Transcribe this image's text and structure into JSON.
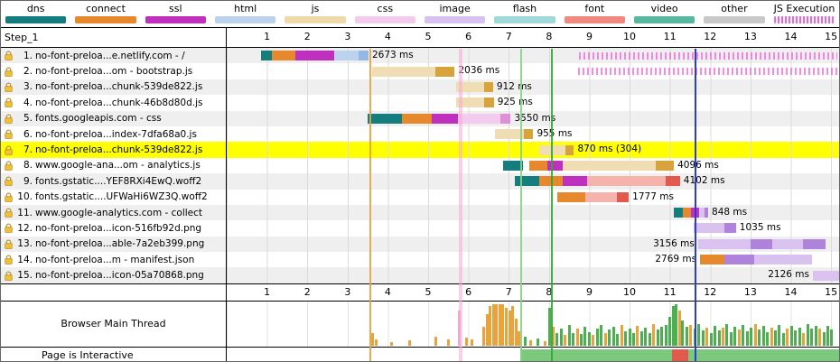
{
  "step_label": "Step_1",
  "legend": {
    "items": [
      {
        "label": "dns",
        "color": "#157D7D"
      },
      {
        "label": "connect",
        "color": "#E8882D"
      },
      {
        "label": "ssl",
        "color": "#BF30BF"
      },
      {
        "label": "html",
        "color": "#BCD3EE"
      },
      {
        "label": "js",
        "color": "#EFD9A8"
      },
      {
        "label": "css",
        "color": "#F2CBEE"
      },
      {
        "label": "image",
        "color": "#D9C2EF"
      },
      {
        "label": "flash",
        "color": "#9FD9D9"
      },
      {
        "label": "font",
        "color": "#F08A80"
      },
      {
        "label": "video",
        "color": "#57B7A0"
      },
      {
        "label": "other",
        "color": "#C9C9C9"
      },
      {
        "label": "JS Execution",
        "color": "#F066DE",
        "striped": true
      }
    ]
  },
  "timeline": {
    "ticks": [
      1,
      2,
      3,
      4,
      5,
      6,
      7,
      8,
      9,
      10,
      11,
      12,
      13,
      14,
      15
    ],
    "seconds_visible": 15.2
  },
  "colors": {
    "highlight": "#FFFF00",
    "dns": "#157D7D",
    "connect": "#E8882D",
    "ssl": "#BF30BF",
    "html_light": "#BCD3EE",
    "html_dark": "#93B8E3",
    "js_light": "#F0DDB4",
    "js_dark": "#D9A33C",
    "css_light": "#F2CBEE",
    "css_dark": "#DE8FD6",
    "font_light": "#F5B3AC",
    "font_dark": "#E25A4D",
    "image_light": "#D9C2EF",
    "image_dark": "#AF83DC",
    "other_light": "#DCD3E8",
    "other_dark": "#B9A8D1",
    "mt": {
      "o": "#E8A33D",
      "g": "#4CAF50",
      "p": "#F5A6CE"
    }
  },
  "requests": [
    {
      "num": 1,
      "url": "no-font-preloa...e.netlify.com - /",
      "label": "2673 ms",
      "label_pos": "after",
      "start": 0.85,
      "segments": [
        [
          "dns",
          0.28
        ],
        [
          "connect",
          0.58
        ],
        [
          "ssl",
          0.95
        ],
        [
          "html_light",
          0.62
        ],
        [
          "html_dark",
          0.24
        ]
      ],
      "js_exec": [
        [
          8.75,
          15.15
        ]
      ]
    },
    {
      "num": 2,
      "url": "no-font-preloa...om - bootstrap.js",
      "label": "2036 ms",
      "label_pos": "after",
      "start": 3.62,
      "segments": [
        [
          "js_light",
          1.55
        ],
        [
          "js_dark",
          0.49
        ]
      ],
      "js_exec": [
        [
          8.72,
          15.15
        ]
      ]
    },
    {
      "num": 3,
      "url": "no-font-preloa...chunk-539de822.js",
      "label": "912 ms",
      "label_pos": "after",
      "start": 5.7,
      "segments": [
        [
          "js_light",
          0.68
        ],
        [
          "js_dark",
          0.23
        ]
      ]
    },
    {
      "num": 4,
      "url": "no-font-preloa...chunk-46b8d80d.js",
      "label": "925 ms",
      "label_pos": "after",
      "start": 5.7,
      "segments": [
        [
          "js_light",
          0.7
        ],
        [
          "js_dark",
          0.23
        ]
      ]
    },
    {
      "num": 5,
      "url": "fonts.googleapis.com - css",
      "label": "3550 ms",
      "label_pos": "after",
      "start": 3.5,
      "segments": [
        [
          "dns",
          0.85
        ],
        [
          "connect",
          0.75
        ],
        [
          "ssl",
          0.65
        ],
        [
          "css_light",
          1.05
        ],
        [
          "css_dark",
          0.25
        ]
      ]
    },
    {
      "num": 6,
      "url": "no-font-preloa...index-7dfa68a0.js",
      "label": "955 ms",
      "label_pos": "after",
      "start": 6.65,
      "segments": [
        [
          "js_light",
          0.72
        ],
        [
          "js_dark",
          0.24
        ]
      ]
    },
    {
      "num": 7,
      "url": "no-font-preloa...chunk-539de822.js",
      "label": "870 ms (304)",
      "label_pos": "after",
      "start": 7.75,
      "highlight": true,
      "segments": [
        [
          "js_light",
          0.65
        ],
        [
          "js_dark",
          0.22
        ]
      ]
    },
    {
      "num": 8,
      "url": "www.google-ana...om - analytics.js",
      "label": "4096 ms",
      "label_pos": "after",
      "start": 6.85,
      "segments": [
        [
          "dns",
          0.5
        ],
        [
          "gap",
          0.15
        ],
        [
          "connect",
          0.45
        ],
        [
          "ssl",
          0.4
        ],
        [
          "js_light",
          2.3
        ],
        [
          "js_dark",
          0.45
        ]
      ]
    },
    {
      "num": 9,
      "url": "fonts.gstatic....YEF8RXi4EwQ.woff2",
      "label": "4102 ms",
      "label_pos": "after",
      "start": 7.15,
      "segments": [
        [
          "dns",
          0.6
        ],
        [
          "connect",
          0.6
        ],
        [
          "ssl",
          0.6
        ],
        [
          "font_light",
          1.95
        ],
        [
          "font_dark",
          0.35
        ]
      ]
    },
    {
      "num": 10,
      "url": "fonts.gstatic....UFWaHi6WZ3Q.woff2",
      "label": "1777 ms",
      "label_pos": "after",
      "start": 8.2,
      "segments": [
        [
          "connect",
          0.7
        ],
        [
          "font_light",
          0.78
        ],
        [
          "font_dark",
          0.3
        ]
      ]
    },
    {
      "num": 11,
      "url": "www.google-analytics.com - collect",
      "label": "848 ms",
      "label_pos": "after",
      "start": 11.1,
      "segments": [
        [
          "dns",
          0.22
        ],
        [
          "connect",
          0.2
        ],
        [
          "ssl",
          0.2
        ],
        [
          "image_light",
          0.13
        ],
        [
          "image_dark",
          0.1
        ]
      ]
    },
    {
      "num": 12,
      "url": "no-font-preloa...icon-516fb92d.png",
      "label": "1035 ms",
      "label_pos": "after",
      "start": 11.6,
      "segments": [
        [
          "image_light",
          0.75
        ],
        [
          "image_dark",
          0.29
        ]
      ]
    },
    {
      "num": 13,
      "url": "no-font-preloa...able-7a2eb399.png",
      "label": "3156 ms",
      "label_pos": "before",
      "start": 11.7,
      "segments": [
        [
          "image_light",
          1.3
        ],
        [
          "image_dark",
          0.55
        ],
        [
          "image_light",
          0.75
        ],
        [
          "image_dark",
          0.56
        ]
      ]
    },
    {
      "num": 14,
      "url": "no-font-preloa...m - manifest.json",
      "label": "2769 ms",
      "label_pos": "before",
      "start": 11.75,
      "segments": [
        [
          "connect",
          0.6
        ],
        [
          "image_dark",
          0.75
        ],
        [
          "image_light",
          1.42
        ]
      ]
    },
    {
      "num": 15,
      "url": "no-font-preloa...icon-05a70868.png",
      "label": "2126 ms",
      "label_pos": "before",
      "start": 14.55,
      "segments": [
        [
          "image_light",
          1.6
        ],
        [
          "image_dark",
          0.53
        ]
      ]
    }
  ],
  "event_lines": [
    {
      "name": "first-byte-line",
      "x": 3.55,
      "w": 2,
      "color": "#E8A33D",
      "opacity": 0.9
    },
    {
      "name": "paint-band",
      "x": 5.78,
      "w": 4,
      "color": "#F7A8CF",
      "opacity": 0.55
    },
    {
      "name": "start-render-line",
      "x": 7.28,
      "w": 2,
      "color": "#86D286",
      "opacity": 0.9
    },
    {
      "name": "first-contentful-paint-line",
      "x": 8.05,
      "w": 2,
      "color": "#2EA82E",
      "opacity": 0.9
    },
    {
      "name": "on-load-line",
      "x": 11.62,
      "w": 2,
      "color": "#2B3BD6",
      "opacity": 1
    }
  ],
  "lanes": {
    "main_thread_label": "Browser Main Thread",
    "interactive_label": "Page is Interactive",
    "interactive_segments": [
      {
        "start": 7.28,
        "end": 11.05,
        "color": "#7CC87C"
      },
      {
        "start": 11.05,
        "end": 11.45,
        "color": "#E05A4E"
      },
      {
        "start": 11.45,
        "end": 15.2,
        "color": "#7CC87C"
      }
    ]
  },
  "main_thread_bars": [
    [
      3.62,
      0.3,
      "o"
    ],
    [
      3.7,
      0.16,
      "o"
    ],
    [
      4.1,
      0.08,
      "o"
    ],
    [
      4.55,
      0.12,
      "o"
    ],
    [
      5.18,
      0.22,
      "o"
    ],
    [
      5.5,
      0.14,
      "o"
    ],
    [
      5.78,
      0.85,
      "p"
    ],
    [
      5.95,
      0.2,
      "o"
    ],
    [
      6.08,
      0.14,
      "o"
    ],
    [
      6.38,
      0.45,
      "o"
    ],
    [
      6.46,
      0.75,
      "o"
    ],
    [
      6.54,
      0.95,
      "o"
    ],
    [
      6.62,
      1,
      "o"
    ],
    [
      6.7,
      1,
      "o"
    ],
    [
      6.78,
      1,
      "o"
    ],
    [
      6.86,
      1,
      "o"
    ],
    [
      6.94,
      0.92,
      "o"
    ],
    [
      7.02,
      0.85,
      "o"
    ],
    [
      7.1,
      0.95,
      "o"
    ],
    [
      7.18,
      0.65,
      "o"
    ],
    [
      7.26,
      0.35,
      "o"
    ],
    [
      7.4,
      0.22,
      "g"
    ],
    [
      7.55,
      0.12,
      "o"
    ],
    [
      7.72,
      0.18,
      "g"
    ],
    [
      7.9,
      0.1,
      "o"
    ],
    [
      8.02,
      0.9,
      "g"
    ],
    [
      8.1,
      0.45,
      "o"
    ],
    [
      8.2,
      0.3,
      "g"
    ],
    [
      8.3,
      0.42,
      "g"
    ],
    [
      8.4,
      0.25,
      "o"
    ],
    [
      8.5,
      0.5,
      "g"
    ],
    [
      8.6,
      0.3,
      "g"
    ],
    [
      8.7,
      0.4,
      "o"
    ],
    [
      8.8,
      0.28,
      "g"
    ],
    [
      8.9,
      0.45,
      "g"
    ],
    [
      9.0,
      0.32,
      "g"
    ],
    [
      9.1,
      0.25,
      "o"
    ],
    [
      9.2,
      0.4,
      "g"
    ],
    [
      9.3,
      0.5,
      "g"
    ],
    [
      9.4,
      0.3,
      "o"
    ],
    [
      9.5,
      0.38,
      "g"
    ],
    [
      9.6,
      0.45,
      "g"
    ],
    [
      9.7,
      0.28,
      "g"
    ],
    [
      9.8,
      0.5,
      "o"
    ],
    [
      9.9,
      0.35,
      "g"
    ],
    [
      10.0,
      0.42,
      "g"
    ],
    [
      10.1,
      0.3,
      "g"
    ],
    [
      10.2,
      0.48,
      "o"
    ],
    [
      10.3,
      0.34,
      "g"
    ],
    [
      10.4,
      0.44,
      "g"
    ],
    [
      10.5,
      0.3,
      "g"
    ],
    [
      10.6,
      0.52,
      "o"
    ],
    [
      10.7,
      0.38,
      "g"
    ],
    [
      10.8,
      0.45,
      "g"
    ],
    [
      10.9,
      0.5,
      "g"
    ],
    [
      11.0,
      0.7,
      "g"
    ],
    [
      11.08,
      0.95,
      "g"
    ],
    [
      11.16,
      1,
      "g"
    ],
    [
      11.24,
      0.85,
      "o"
    ],
    [
      11.32,
      0.6,
      "g"
    ],
    [
      11.42,
      0.45,
      "g"
    ],
    [
      11.52,
      0.5,
      "o"
    ],
    [
      11.62,
      0.4,
      "g"
    ],
    [
      11.72,
      0.52,
      "g"
    ],
    [
      11.82,
      0.36,
      "g"
    ],
    [
      11.92,
      0.44,
      "o"
    ],
    [
      12.02,
      0.3,
      "g"
    ],
    [
      12.12,
      0.48,
      "g"
    ],
    [
      12.22,
      0.36,
      "g"
    ],
    [
      12.32,
      0.44,
      "o"
    ],
    [
      12.42,
      0.52,
      "g"
    ],
    [
      12.52,
      0.33,
      "g"
    ],
    [
      12.62,
      0.46,
      "g"
    ],
    [
      12.72,
      0.38,
      "o"
    ],
    [
      12.82,
      0.5,
      "g"
    ],
    [
      12.92,
      0.34,
      "g"
    ],
    [
      13.02,
      0.44,
      "g"
    ],
    [
      13.12,
      0.52,
      "o"
    ],
    [
      13.22,
      0.38,
      "g"
    ],
    [
      13.32,
      0.48,
      "g"
    ],
    [
      13.42,
      0.32,
      "g"
    ],
    [
      13.52,
      0.44,
      "o"
    ],
    [
      13.62,
      0.36,
      "g"
    ],
    [
      13.72,
      0.5,
      "g"
    ],
    [
      13.82,
      0.3,
      "g"
    ],
    [
      13.92,
      0.42,
      "o"
    ],
    [
      14.02,
      0.48,
      "g"
    ],
    [
      14.12,
      0.36,
      "g"
    ],
    [
      14.22,
      0.44,
      "g"
    ],
    [
      14.32,
      0.3,
      "o"
    ],
    [
      14.42,
      0.52,
      "g"
    ],
    [
      14.52,
      0.4,
      "g"
    ],
    [
      14.62,
      0.48,
      "g"
    ],
    [
      14.72,
      0.42,
      "o"
    ],
    [
      14.82,
      0.32,
      "g"
    ],
    [
      14.92,
      0.48,
      "g"
    ],
    [
      15.02,
      0.38,
      "g"
    ]
  ]
}
